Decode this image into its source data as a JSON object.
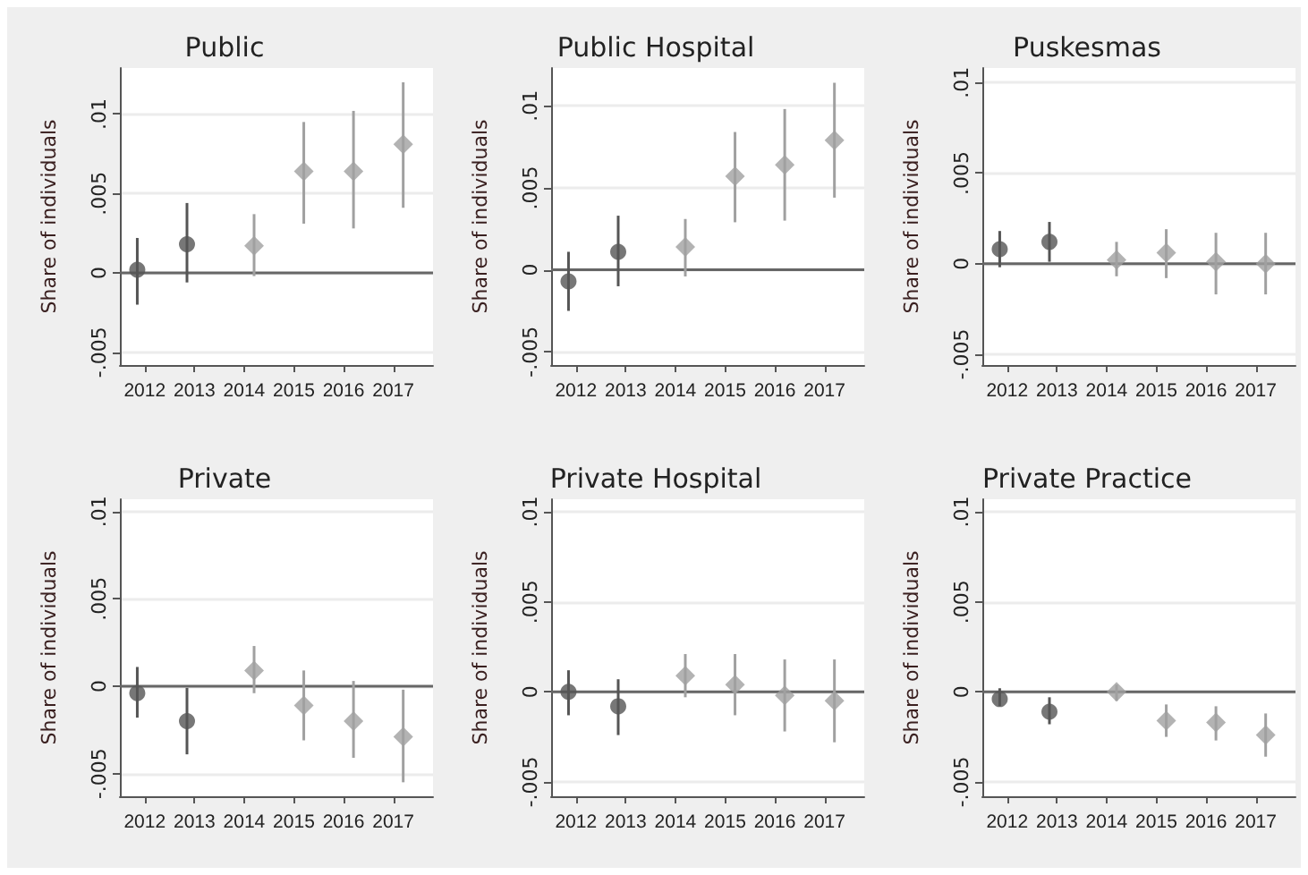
{
  "chart_data": [
    {
      "type": "scatter",
      "title": "Public",
      "ylabel": "Share of individuals",
      "xlim": [
        2011.5,
        2017.8
      ],
      "xticks": [
        2012,
        2013,
        2014,
        2015,
        2016,
        2017
      ],
      "ylim": [
        -0.0058,
        0.0129
      ],
      "yticks": [
        {
          "value": -0.005,
          "label": "-.005"
        },
        {
          "value": 0,
          "label": "0"
        },
        {
          "value": 0.005,
          "label": ".005"
        },
        {
          "value": 0.01,
          "label": ".01"
        }
      ],
      "grid": "y",
      "ref_lines": [
        {
          "axis": "y",
          "value": 0,
          "color": "#666666"
        }
      ],
      "series": [
        {
          "color": "#555555",
          "marker": "circle",
          "x": [
            2011.85,
            2012.85
          ],
          "values": [
            0.0002,
            0.0018
          ],
          "errors": [
            [
              -0.002,
              0.0022
            ],
            [
              -0.0006,
              0.0044
            ]
          ]
        },
        {
          "color": "#a0a0a0",
          "marker": "diamond",
          "x": [
            2014.2,
            2015.2,
            2016.2,
            2017.2
          ],
          "values": [
            0.0017,
            0.0064,
            0.0064,
            0.0081
          ],
          "errors": [
            [
              -0.0002,
              0.0037
            ],
            [
              0.0031,
              0.0095
            ],
            [
              0.0028,
              0.0102
            ],
            [
              0.0041,
              0.012
            ]
          ]
        }
      ]
    },
    {
      "type": "scatter",
      "title": "Public Hospital",
      "ylabel": "Share of individuals",
      "xlim": [
        2011.5,
        2017.8
      ],
      "xticks": [
        2012,
        2013,
        2014,
        2015,
        2016,
        2017
      ],
      "ylim": [
        -0.0058,
        0.0123
      ],
      "yticks": [
        {
          "value": -0.005,
          "label": "-.005"
        },
        {
          "value": 0,
          "label": "0"
        },
        {
          "value": 0.005,
          "label": ".005"
        },
        {
          "value": 0.01,
          "label": ".01"
        }
      ],
      "grid": "y",
      "ref_lines": [
        {
          "axis": "y",
          "value": 0,
          "color": "#666666"
        }
      ],
      "series": [
        {
          "color": "#555555",
          "marker": "circle",
          "x": [
            2011.85,
            2012.85
          ],
          "values": [
            -0.0007,
            0.0011
          ],
          "errors": [
            [
              -0.0025,
              0.0011
            ],
            [
              -0.001,
              0.0033
            ]
          ]
        },
        {
          "color": "#a0a0a0",
          "marker": "diamond",
          "x": [
            2014.2,
            2015.2,
            2016.2,
            2017.2
          ],
          "values": [
            0.0014,
            0.0057,
            0.0064,
            0.0079
          ],
          "errors": [
            [
              -0.0004,
              0.0031
            ],
            [
              0.0029,
              0.0084
            ],
            [
              0.003,
              0.0098
            ],
            [
              0.0044,
              0.0114
            ]
          ]
        }
      ]
    },
    {
      "type": "scatter",
      "title": "Puskesmas",
      "ylabel": "Share of individuals",
      "xlim": [
        2011.5,
        2017.8
      ],
      "xticks": [
        2012,
        2013,
        2014,
        2015,
        2016,
        2017
      ],
      "ylim": [
        -0.0056,
        0.0108
      ],
      "yticks": [
        {
          "value": -0.005,
          "label": "-.005"
        },
        {
          "value": 0,
          "label": "0"
        },
        {
          "value": 0.005,
          "label": ".005"
        },
        {
          "value": 0.01,
          "label": ".01"
        }
      ],
      "grid": "y",
      "ref_lines": [
        {
          "axis": "y",
          "value": 0,
          "color": "#666666"
        }
      ],
      "series": [
        {
          "color": "#555555",
          "marker": "circle",
          "x": [
            2011.85,
            2012.85
          ],
          "values": [
            0.0008,
            0.0012
          ],
          "errors": [
            [
              -0.0002,
              0.0018
            ],
            [
              0.0001,
              0.0023
            ]
          ]
        },
        {
          "color": "#a0a0a0",
          "marker": "diamond",
          "x": [
            2014.2,
            2015.2,
            2016.2,
            2017.2
          ],
          "values": [
            0.0002,
            0.0006,
            0.0001,
            0
          ],
          "errors": [
            [
              -0.0007,
              0.0012
            ],
            [
              -0.0008,
              0.0019
            ],
            [
              -0.0017,
              0.0017
            ],
            [
              -0.0017,
              0.0017
            ]
          ]
        }
      ]
    },
    {
      "type": "scatter",
      "title": "Private",
      "ylabel": "Share of individuals",
      "xlim": [
        2011.5,
        2017.8
      ],
      "xticks": [
        2012,
        2013,
        2014,
        2015,
        2016,
        2017
      ],
      "ylim": [
        -0.0063,
        0.0107
      ],
      "yticks": [
        {
          "value": -0.005,
          "label": "-.005"
        },
        {
          "value": 0,
          "label": "0"
        },
        {
          "value": 0.005,
          "label": ".005"
        },
        {
          "value": 0.01,
          "label": ".01"
        }
      ],
      "grid": "y",
      "ref_lines": [
        {
          "axis": "y",
          "value": 0,
          "color": "#666666"
        }
      ],
      "series": [
        {
          "color": "#555555",
          "marker": "circle",
          "x": [
            2011.85,
            2012.85
          ],
          "values": [
            -0.0004,
            -0.002
          ],
          "errors": [
            [
              -0.0018,
              0.0011
            ],
            [
              -0.0039,
              -0.0001
            ]
          ]
        },
        {
          "color": "#a0a0a0",
          "marker": "diamond",
          "x": [
            2014.2,
            2015.2,
            2016.2,
            2017.2
          ],
          "values": [
            0.0009,
            -0.0011,
            -0.002,
            -0.0029
          ],
          "errors": [
            [
              -0.0004,
              0.0023
            ],
            [
              -0.0031,
              0.0009
            ],
            [
              -0.0041,
              0.0003
            ],
            [
              -0.0055,
              -0.0002
            ]
          ]
        }
      ]
    },
    {
      "type": "scatter",
      "title": "Private Hospital",
      "ylabel": "Share of individuals",
      "xlim": [
        2011.5,
        2017.8
      ],
      "xticks": [
        2012,
        2013,
        2014,
        2015,
        2016,
        2017
      ],
      "ylim": [
        -0.0058,
        0.0107
      ],
      "yticks": [
        {
          "value": -0.005,
          "label": "-.005"
        },
        {
          "value": 0,
          "label": "0"
        },
        {
          "value": 0.005,
          "label": ".005"
        },
        {
          "value": 0.01,
          "label": ".01"
        }
      ],
      "grid": "y",
      "ref_lines": [
        {
          "axis": "y",
          "value": 0,
          "color": "#666666"
        }
      ],
      "series": [
        {
          "color": "#555555",
          "marker": "circle",
          "x": [
            2011.85,
            2012.85
          ],
          "values": [
            0,
            -0.0008
          ],
          "errors": [
            [
              -0.0013,
              0.0012
            ],
            [
              -0.0024,
              0.0007
            ]
          ]
        },
        {
          "color": "#a0a0a0",
          "marker": "diamond",
          "x": [
            2014.2,
            2015.2,
            2016.2,
            2017.2
          ],
          "values": [
            0.0009,
            0.0004,
            -0.0002,
            -0.0005
          ],
          "errors": [
            [
              -0.0003,
              0.0021
            ],
            [
              -0.0013,
              0.0021
            ],
            [
              -0.0022,
              0.0018
            ],
            [
              -0.0028,
              0.0018
            ]
          ]
        }
      ]
    },
    {
      "type": "scatter",
      "title": "Private Practice",
      "ylabel": "Share of individuals",
      "xlim": [
        2011.5,
        2017.8
      ],
      "xticks": [
        2012,
        2013,
        2014,
        2015,
        2016,
        2017
      ],
      "ylim": [
        -0.0058,
        0.0107
      ],
      "yticks": [
        {
          "value": -0.005,
          "label": "-.005"
        },
        {
          "value": 0,
          "label": "0"
        },
        {
          "value": 0.005,
          "label": ".005"
        },
        {
          "value": 0.01,
          "label": ".01"
        }
      ],
      "grid": "y",
      "ref_lines": [
        {
          "axis": "y",
          "value": 0,
          "color": "#666666"
        }
      ],
      "series": [
        {
          "color": "#555555",
          "marker": "circle",
          "x": [
            2011.85,
            2012.85
          ],
          "values": [
            -0.0004,
            -0.0011
          ],
          "errors": [
            [
              -0.0008,
              0.0002
            ],
            [
              -0.0018,
              -0.0003
            ]
          ]
        },
        {
          "color": "#a0a0a0",
          "marker": "diamond",
          "x": [
            2014.2,
            2015.2,
            2016.2,
            2017.2
          ],
          "values": [
            0,
            -0.0016,
            -0.0017,
            -0.0024
          ],
          "errors": [
            [
              -0.0005,
              0.0004
            ],
            [
              -0.0025,
              -0.0007
            ],
            [
              -0.0027,
              -0.0008
            ],
            [
              -0.0036,
              -0.0012
            ]
          ]
        }
      ]
    }
  ]
}
